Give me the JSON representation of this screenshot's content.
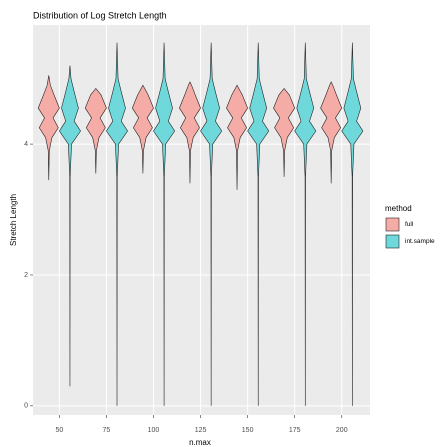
{
  "chart_data": {
    "type": "violin",
    "title": "Distribution of Log Stretch Length",
    "x_label": "n.max",
    "y_label": "Stretch Length",
    "legend_title": "method",
    "categories": [
      50,
      75,
      100,
      125,
      150,
      175,
      200
    ],
    "series": [
      {
        "name": "full",
        "color": "#f5aba6",
        "min": [
          3.45,
          3.55,
          3.55,
          3.4,
          3.3,
          3.5,
          3.4
        ],
        "max": [
          5.05,
          4.85,
          4.9,
          4.95,
          4.9,
          4.85,
          4.95
        ],
        "profile_y": [
          3.9,
          4.1,
          4.25,
          4.4,
          4.55,
          4.75,
          4.9
        ],
        "profile_width": [
          0.05,
          0.3,
          0.9,
          0.4,
          1,
          0.5,
          0.15
        ]
      },
      {
        "name": "int.sample",
        "color": "#6ed8da",
        "min": [
          0.3,
          0,
          0,
          0,
          0,
          0,
          0
        ],
        "max": [
          5.2,
          5.55,
          5.55,
          5.55,
          5.55,
          5.55,
          5.55
        ],
        "profile_y": [
          3.5,
          4.0,
          4.2,
          4.35,
          4.55,
          4.8,
          5.0
        ],
        "profile_width": [
          0.02,
          0.15,
          1,
          0.4,
          0.8,
          0.4,
          0.1
        ]
      }
    ],
    "xlim": [
      36,
      215
    ],
    "ylim": [
      -0.14,
      5.82
    ],
    "xticks": [
      50,
      75,
      100,
      125,
      150,
      175,
      200
    ],
    "yticks": [
      0,
      2,
      4
    ],
    "grid": true,
    "legend_position": "right"
  }
}
